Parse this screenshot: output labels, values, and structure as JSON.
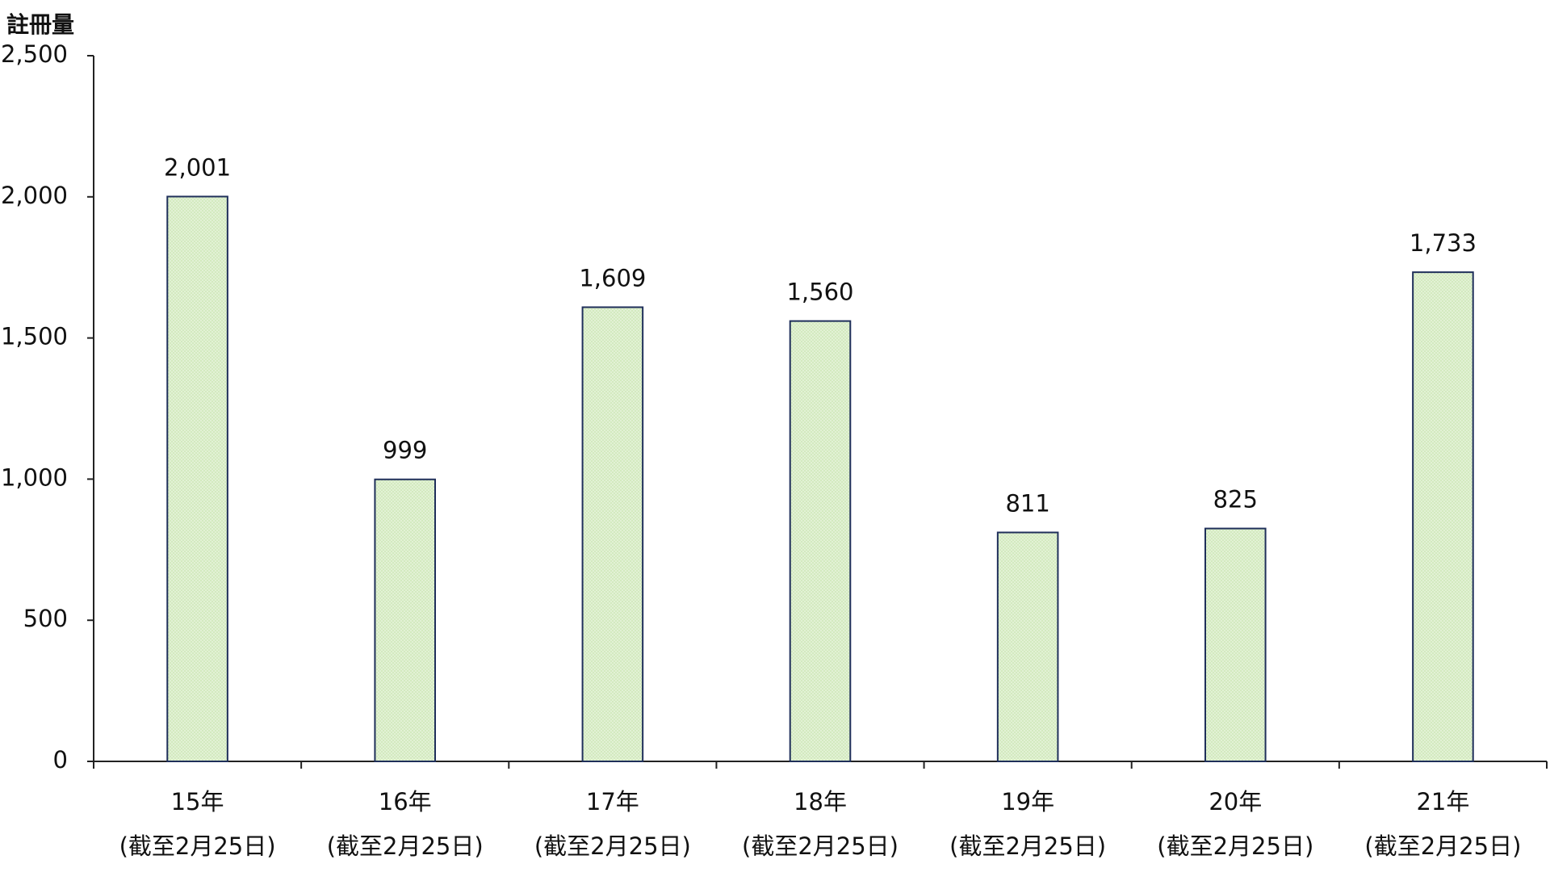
{
  "chart_data": {
    "type": "bar",
    "y_label": "註冊量",
    "categories": [
      [
        "15年",
        "(截至2月25日)"
      ],
      [
        "16年",
        "(截至2月25日)"
      ],
      [
        "17年",
        "(截至2月25日)"
      ],
      [
        "18年",
        "(截至2月25日)"
      ],
      [
        "19年",
        "(截至2月25日)"
      ],
      [
        "20年",
        "(截至2月25日)"
      ],
      [
        "21年",
        "(截至2月25日)"
      ]
    ],
    "values": [
      2001,
      999,
      1609,
      1560,
      811,
      825,
      1733
    ],
    "value_labels": [
      "2,001",
      "999",
      "1,609",
      "1,560",
      "811",
      "825",
      "1,733"
    ],
    "color": "#d3eabf",
    "edge_color": "#1f2f5a",
    "ylim": [
      0,
      2500
    ],
    "yticks": [
      0,
      500,
      {
        "value": 1000,
        "label": "1,000"
      },
      {
        "value": 1500,
        "label": "1,500"
      },
      {
        "value": 2000,
        "label": "2,000"
      },
      {
        "value": 2500,
        "label": "2,500"
      }
    ],
    "grid": false
  }
}
